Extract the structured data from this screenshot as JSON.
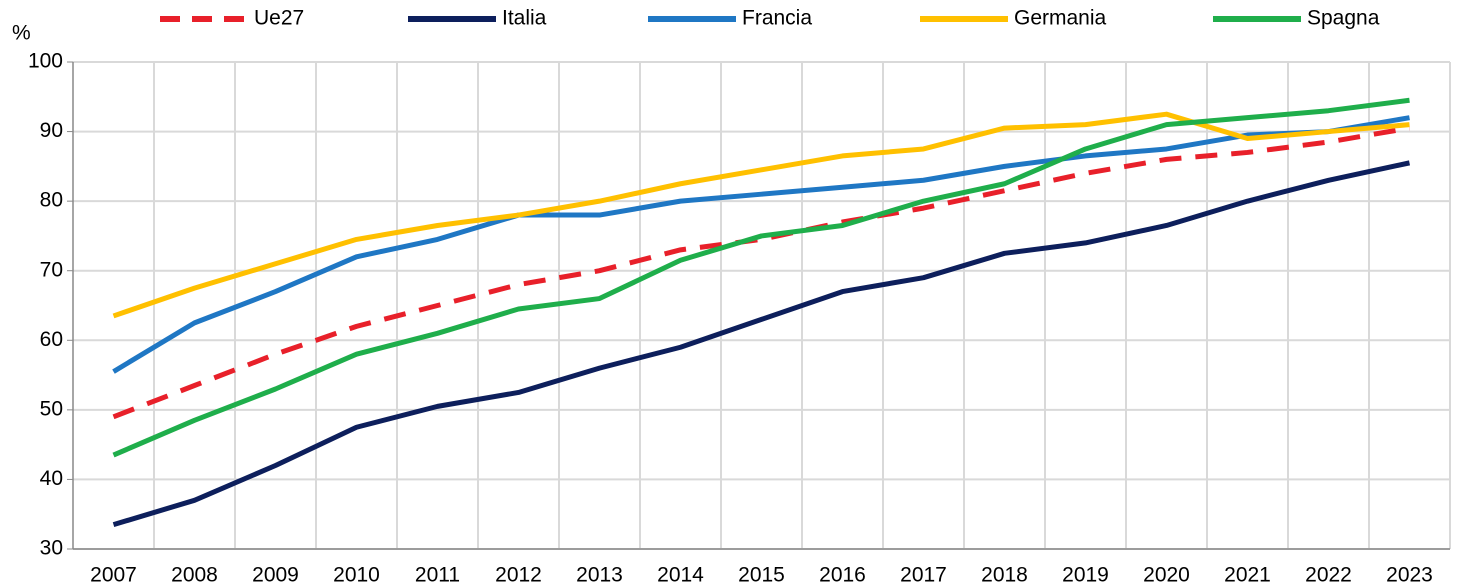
{
  "chart_data": {
    "type": "line",
    "y_label": "%",
    "categories": [
      "2007",
      "2008",
      "2009",
      "2010",
      "2011",
      "2012",
      "2013",
      "2014",
      "2015",
      "2016",
      "2017",
      "2018",
      "2019",
      "2020",
      "2021",
      "2022",
      "2023"
    ],
    "series": [
      {
        "name": "Ue27",
        "color": "#e8202a",
        "dashed": true,
        "values": [
          49,
          53.5,
          58,
          62,
          65,
          68,
          70,
          73,
          74.5,
          77,
          79,
          81.5,
          84,
          86,
          87,
          88.5,
          90.5
        ]
      },
      {
        "name": "Italia",
        "color": "#0d1f5c",
        "values": [
          33.5,
          37,
          42,
          47.5,
          50.5,
          52.5,
          56,
          59,
          63,
          67,
          69,
          72.5,
          74,
          76.5,
          80,
          83,
          85.5
        ]
      },
      {
        "name": "Francia",
        "color": "#1f77c4",
        "values": [
          55.5,
          62.5,
          67,
          72,
          74.5,
          78,
          78,
          80,
          81,
          82,
          83,
          85,
          86.5,
          87.5,
          89.5,
          90,
          92
        ]
      },
      {
        "name": "Germania",
        "color": "#ffc000",
        "values": [
          63.5,
          67.5,
          71,
          74.5,
          76.5,
          78,
          80,
          82.5,
          84.5,
          86.5,
          87.5,
          90.5,
          91,
          92.5,
          89,
          90,
          91
        ]
      },
      {
        "name": "Spagna",
        "color": "#1fae4b",
        "values": [
          43.5,
          48.5,
          53,
          58,
          61,
          64.5,
          66,
          71.5,
          75,
          76.5,
          80,
          82.5,
          87.5,
          91,
          92,
          93,
          94.5
        ]
      }
    ],
    "ylim": [
      30,
      100
    ],
    "yticks": [
      30,
      40,
      50,
      60,
      70,
      80,
      90,
      100
    ],
    "grid": true,
    "legend": "top"
  }
}
